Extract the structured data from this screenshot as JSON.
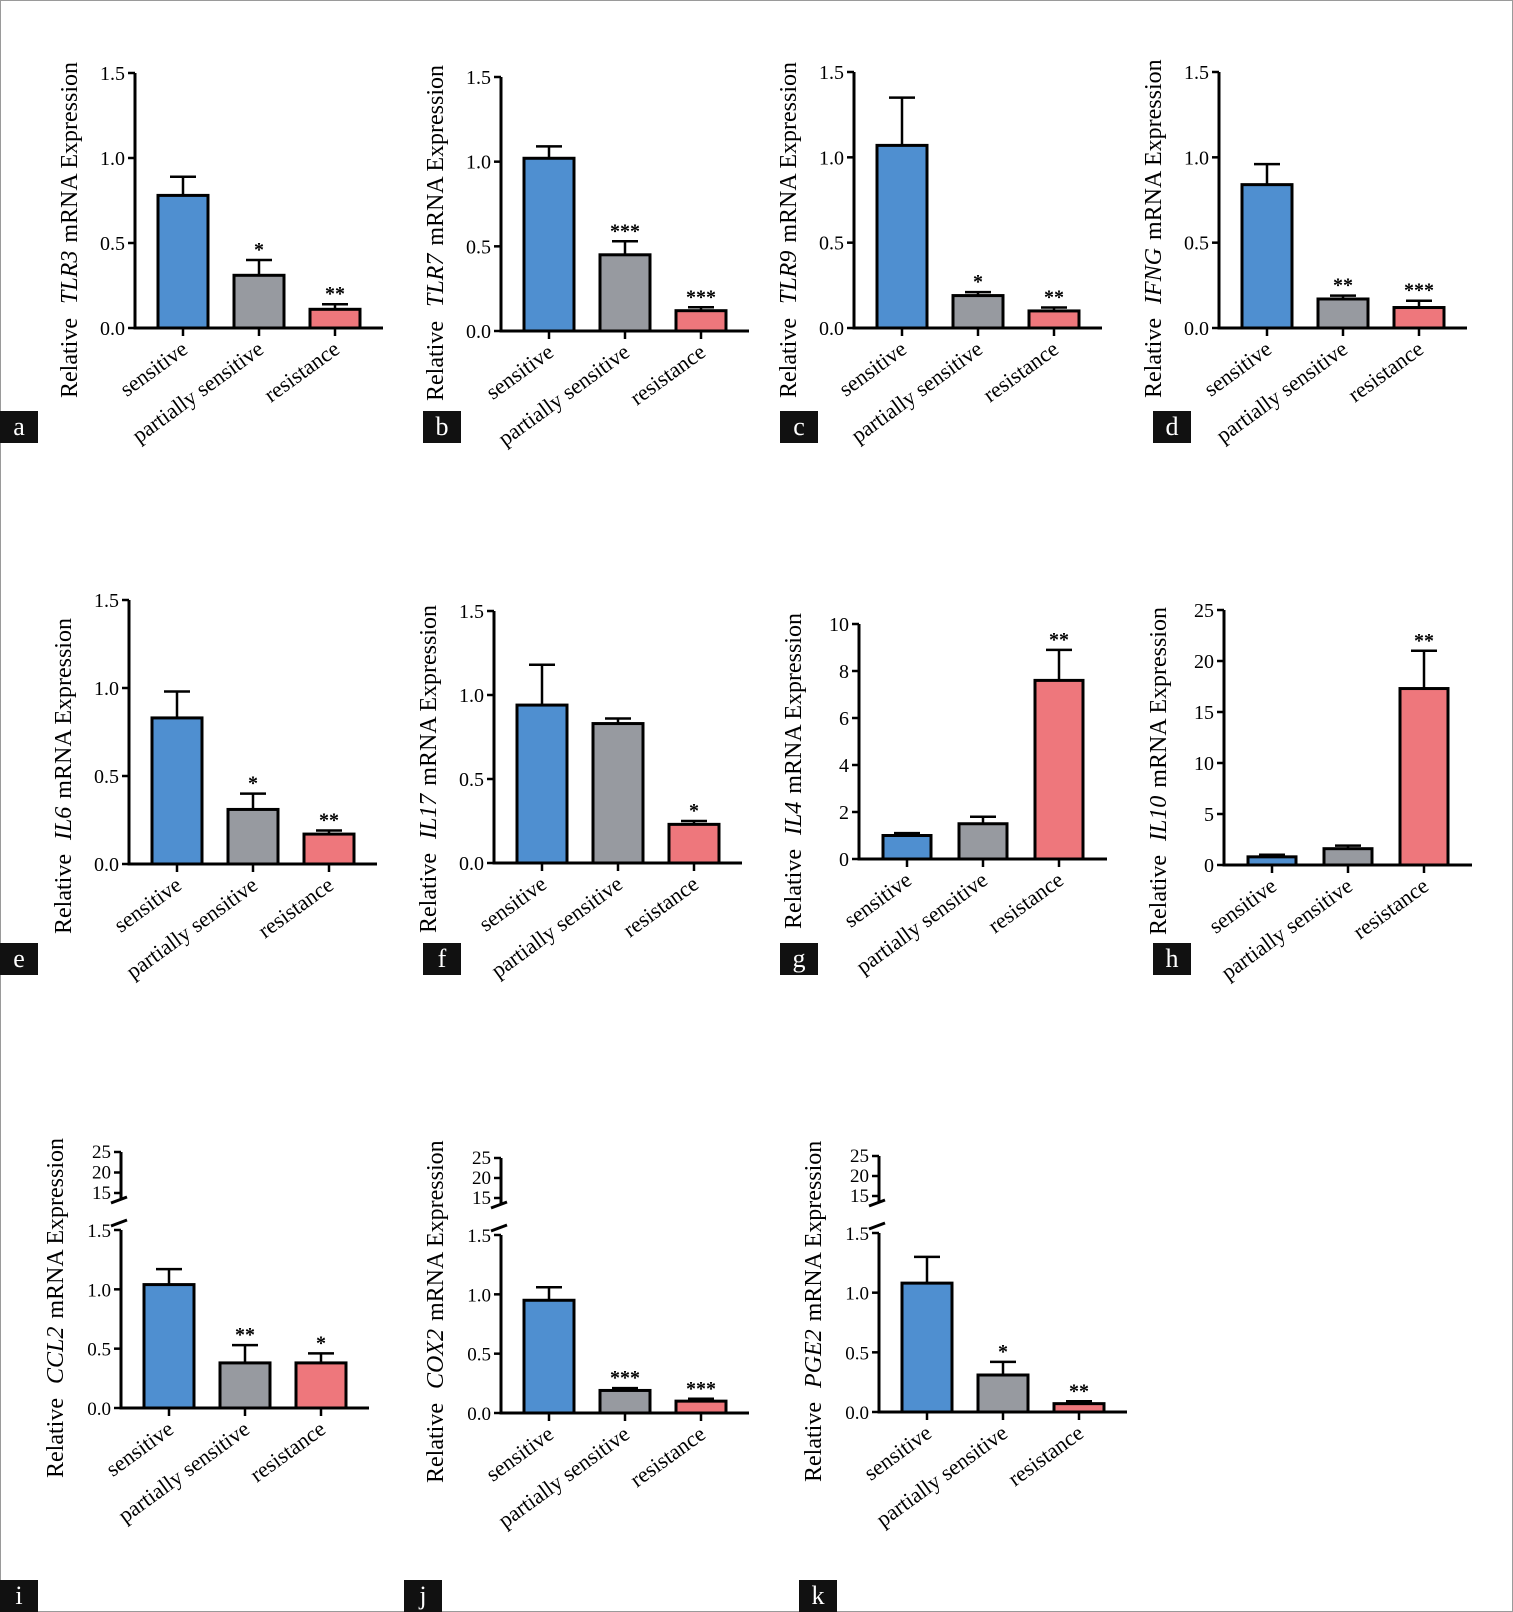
{
  "figure": {
    "category_labels": [
      "sensitive",
      "partially sensitive",
      "resistance"
    ]
  },
  "chart_data": [
    {
      "id": "a",
      "type": "bar",
      "panel_label": "a",
      "gene": "TLR3",
      "ylabel_prefix": "Relative",
      "ylabel_suffix": "mRNA Expression",
      "categories": [
        "sensitive",
        "partially sensitive",
        "resistance"
      ],
      "values": [
        0.78,
        0.31,
        0.11
      ],
      "errors": [
        0.11,
        0.09,
        0.03
      ],
      "significance": [
        "",
        "*",
        "**"
      ],
      "colors": [
        "#4f8fd0",
        "#979aa0",
        "#ee777c"
      ],
      "ylim": [
        0,
        1.5
      ],
      "yticks": [
        "0.0",
        "0.5",
        "1.0",
        "1.5"
      ]
    },
    {
      "id": "b",
      "type": "bar",
      "panel_label": "b",
      "gene": "TLR7",
      "ylabel_prefix": "Relative",
      "ylabel_suffix": "mRNA Expression",
      "categories": [
        "sensitive",
        "partially sensitive",
        "resistance"
      ],
      "values": [
        1.02,
        0.45,
        0.12
      ],
      "errors": [
        0.07,
        0.08,
        0.02
      ],
      "significance": [
        "",
        "***",
        "***"
      ],
      "colors": [
        "#4f8fd0",
        "#979aa0",
        "#ee777c"
      ],
      "ylim": [
        0,
        1.5
      ],
      "yticks": [
        "0.0",
        "0.5",
        "1.0",
        "1.5"
      ]
    },
    {
      "id": "c",
      "type": "bar",
      "panel_label": "c",
      "gene": "TLR9",
      "ylabel_prefix": "Relative",
      "ylabel_suffix": "mRNA Expression",
      "categories": [
        "sensitive",
        "partially sensitive",
        "resistance"
      ],
      "values": [
        1.07,
        0.19,
        0.1
      ],
      "errors": [
        0.28,
        0.02,
        0.02
      ],
      "significance": [
        "",
        "*",
        "**"
      ],
      "colors": [
        "#4f8fd0",
        "#979aa0",
        "#ee777c"
      ],
      "ylim": [
        0,
        1.5
      ],
      "yticks": [
        "0.0",
        "0.5",
        "1.0",
        "1.5"
      ]
    },
    {
      "id": "d",
      "type": "bar",
      "panel_label": "d",
      "gene": "IFNG",
      "ylabel_prefix": "Relative",
      "ylabel_suffix": "mRNA Expression",
      "categories": [
        "sensitive",
        "partially sensitive",
        "resistance"
      ],
      "values": [
        0.84,
        0.17,
        0.12
      ],
      "errors": [
        0.12,
        0.02,
        0.04
      ],
      "significance": [
        "",
        "**",
        "***"
      ],
      "colors": [
        "#4f8fd0",
        "#979aa0",
        "#ee777c"
      ],
      "ylim": [
        0,
        1.5
      ],
      "yticks": [
        "0.0",
        "0.5",
        "1.0",
        "1.5"
      ]
    },
    {
      "id": "e",
      "type": "bar",
      "panel_label": "e",
      "gene": "IL6",
      "ylabel_prefix": "Relative",
      "ylabel_suffix": "mRNA Expression",
      "categories": [
        "sensitive",
        "partially sensitive",
        "resistance"
      ],
      "values": [
        0.83,
        0.31,
        0.17
      ],
      "errors": [
        0.15,
        0.09,
        0.02
      ],
      "significance": [
        "",
        "*",
        "**"
      ],
      "colors": [
        "#4f8fd0",
        "#979aa0",
        "#ee777c"
      ],
      "ylim": [
        0,
        1.5
      ],
      "yticks": [
        "0.0",
        "0.5",
        "1.0",
        "1.5"
      ]
    },
    {
      "id": "f",
      "type": "bar",
      "panel_label": "f",
      "gene": "IL17",
      "ylabel_prefix": "Relative",
      "ylabel_suffix": "mRNA Expression",
      "categories": [
        "sensitive",
        "partially sensitive",
        "resistance"
      ],
      "values": [
        0.94,
        0.83,
        0.23
      ],
      "errors": [
        0.24,
        0.03,
        0.02
      ],
      "significance": [
        "",
        "",
        "*"
      ],
      "colors": [
        "#4f8fd0",
        "#979aa0",
        "#ee777c"
      ],
      "ylim": [
        0,
        1.5
      ],
      "yticks": [
        "0.0",
        "0.5",
        "1.0",
        "1.5"
      ]
    },
    {
      "id": "g",
      "type": "bar",
      "panel_label": "g",
      "gene": "IL4",
      "ylabel_prefix": "Relative",
      "ylabel_suffix": "mRNA Expression",
      "categories": [
        "sensitive",
        "partially sensitive",
        "resistance"
      ],
      "values": [
        1.0,
        1.5,
        7.6
      ],
      "errors": [
        0.1,
        0.3,
        1.3
      ],
      "significance": [
        "",
        "",
        "**"
      ],
      "colors": [
        "#4f8fd0",
        "#979aa0",
        "#ee777c"
      ],
      "ylim": [
        0,
        10
      ],
      "yticks": [
        "0",
        "2",
        "4",
        "6",
        "8",
        "10"
      ]
    },
    {
      "id": "h",
      "type": "bar",
      "panel_label": "h",
      "gene": "IL10",
      "ylabel_prefix": "Relative",
      "ylabel_suffix": "mRNA Expression",
      "categories": [
        "sensitive",
        "partially sensitive",
        "resistance"
      ],
      "values": [
        0.8,
        1.6,
        17.3
      ],
      "errors": [
        0.2,
        0.3,
        3.7
      ],
      "significance": [
        "",
        "",
        "**"
      ],
      "colors": [
        "#4f8fd0",
        "#979aa0",
        "#ee777c"
      ],
      "ylim": [
        0,
        25
      ],
      "yticks": [
        "0",
        "5",
        "10",
        "15",
        "20",
        "25"
      ]
    },
    {
      "id": "i",
      "type": "bar",
      "panel_label": "i",
      "gene": "CCL2",
      "ylabel_prefix": "Relative",
      "ylabel_suffix": "mRNA Expression",
      "categories": [
        "sensitive",
        "partially sensitive",
        "resistance"
      ],
      "values": [
        1.04,
        0.38,
        0.38
      ],
      "errors": [
        0.13,
        0.15,
        0.08
      ],
      "significance": [
        "",
        "**",
        "*"
      ],
      "colors": [
        "#4f8fd0",
        "#979aa0",
        "#ee777c"
      ],
      "ylim": [
        0,
        1.5
      ],
      "yticks": [
        "0.0",
        "0.5",
        "1.0",
        "1.5"
      ],
      "broken_axis_upper_ticks": [
        "15",
        "20",
        "25"
      ]
    },
    {
      "id": "j",
      "type": "bar",
      "panel_label": "j",
      "gene": "COX2",
      "ylabel_prefix": "Relative",
      "ylabel_suffix": "mRNA Expression",
      "categories": [
        "sensitive",
        "partially sensitive",
        "resistance"
      ],
      "values": [
        0.95,
        0.19,
        0.1
      ],
      "errors": [
        0.11,
        0.02,
        0.02
      ],
      "significance": [
        "",
        "***",
        "***"
      ],
      "colors": [
        "#4f8fd0",
        "#979aa0",
        "#ee777c"
      ],
      "ylim": [
        0,
        1.5
      ],
      "yticks": [
        "0.0",
        "0.5",
        "1.0",
        "1.5"
      ],
      "broken_axis_upper_ticks": [
        "15",
        "20",
        "25"
      ]
    },
    {
      "id": "k",
      "type": "bar",
      "panel_label": "k",
      "gene": "PGE2",
      "ylabel_prefix": "Relative",
      "ylabel_suffix": "mRNA Expression",
      "categories": [
        "sensitive",
        "partially sensitive",
        "resistance"
      ],
      "values": [
        1.08,
        0.31,
        0.07
      ],
      "errors": [
        0.22,
        0.11,
        0.02
      ],
      "significance": [
        "",
        "*",
        "**"
      ],
      "colors": [
        "#4f8fd0",
        "#979aa0",
        "#ee777c"
      ],
      "ylim": [
        0,
        1.5
      ],
      "yticks": [
        "0.0",
        "0.5",
        "1.0",
        "1.5"
      ],
      "broken_axis_upper_ticks": [
        "15",
        "20",
        "25"
      ]
    }
  ]
}
